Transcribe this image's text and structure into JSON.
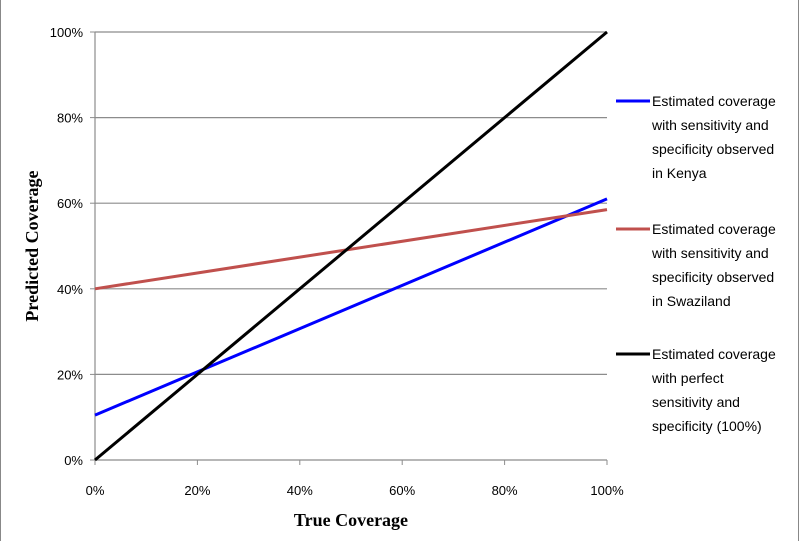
{
  "chart_data": {
    "type": "line",
    "xlabel": "True Coverage",
    "ylabel": "Predicted Coverage",
    "xlim": [
      0,
      100
    ],
    "ylim": [
      0,
      100
    ],
    "x_ticks": [
      "0%",
      "20%",
      "40%",
      "60%",
      "80%",
      "100%"
    ],
    "y_ticks": [
      "0%",
      "20%",
      "40%",
      "60%",
      "80%",
      "100%"
    ],
    "grid": "horizontal",
    "legend_position": "right",
    "series": [
      {
        "name": "Estimated coverage with sensitivity and specificity observed in Kenya",
        "legend_lines": [
          "Estimated coverage",
          "with sensitivity and",
          "specificity observed",
          "in Kenya"
        ],
        "color": "#0000FF",
        "x": [
          0,
          100
        ],
        "y": [
          10.5,
          61
        ]
      },
      {
        "name": "Estimated coverage with sensitivity and specificity observed in Swaziland",
        "legend_lines": [
          "Estimated coverage",
          "with sensitivity and",
          "specificity observed",
          "in Swaziland"
        ],
        "color": "#C0504D",
        "x": [
          0,
          100
        ],
        "y": [
          40,
          58.5
        ]
      },
      {
        "name": "Estimated coverage with perfect sensitivity and specificity (100%)",
        "legend_lines": [
          "Estimated coverage",
          "with perfect",
          "sensitivity and",
          "specificity (100%)"
        ],
        "color": "#000000",
        "x": [
          0,
          100
        ],
        "y": [
          0,
          100
        ]
      }
    ]
  }
}
